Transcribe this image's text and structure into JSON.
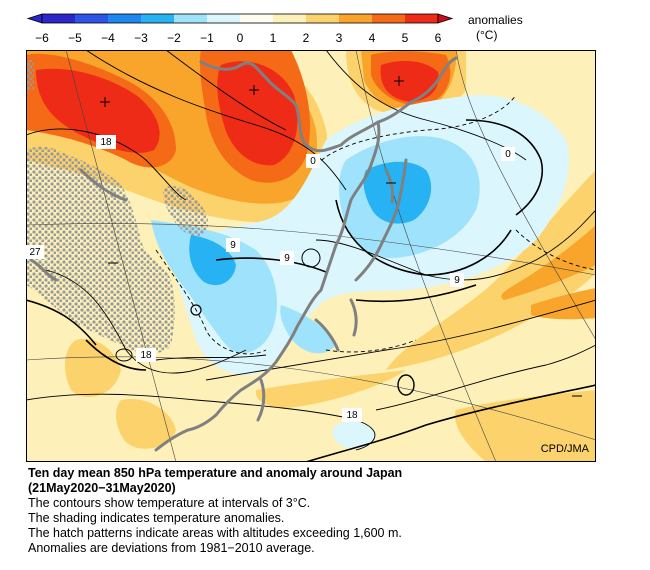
{
  "legend": {
    "title": "anomalies",
    "unit": "(°C)",
    "ticks": [
      "−6",
      "−5",
      "−4",
      "−3",
      "−2",
      "−1",
      "0",
      "1",
      "2",
      "3",
      "4",
      "5",
      "6"
    ],
    "colors": [
      "#2b27c9",
      "#2f55e8",
      "#1f86f0",
      "#27b3f3",
      "#9ee3fb",
      "#dcf6fd",
      "#fefdf0",
      "#fdf0b8",
      "#fcd26c",
      "#f9a42a",
      "#f56a17",
      "#ee2b17",
      "#c9101a"
    ]
  },
  "map": {
    "contour_labels": [
      "18",
      "0",
      "0",
      "27",
      "9",
      "9",
      "9",
      "18",
      "18"
    ],
    "credit": "CPD/JMA",
    "hatch_color": "#9a9a9a",
    "coast_color": "#808080"
  },
  "caption": {
    "title": "Ten day mean 850 hPa temperature and anomaly around Japan",
    "period": "(21May2020−31May2020)",
    "lines": [
      "The contours show temperature at intervals of 3°C.",
      "The shading indicates temperature anomalies.",
      "The hatch patterns indicate areas with altitudes exceeding 1,600 m.",
      "Anomalies are deviations from 1981−2010 average."
    ]
  }
}
